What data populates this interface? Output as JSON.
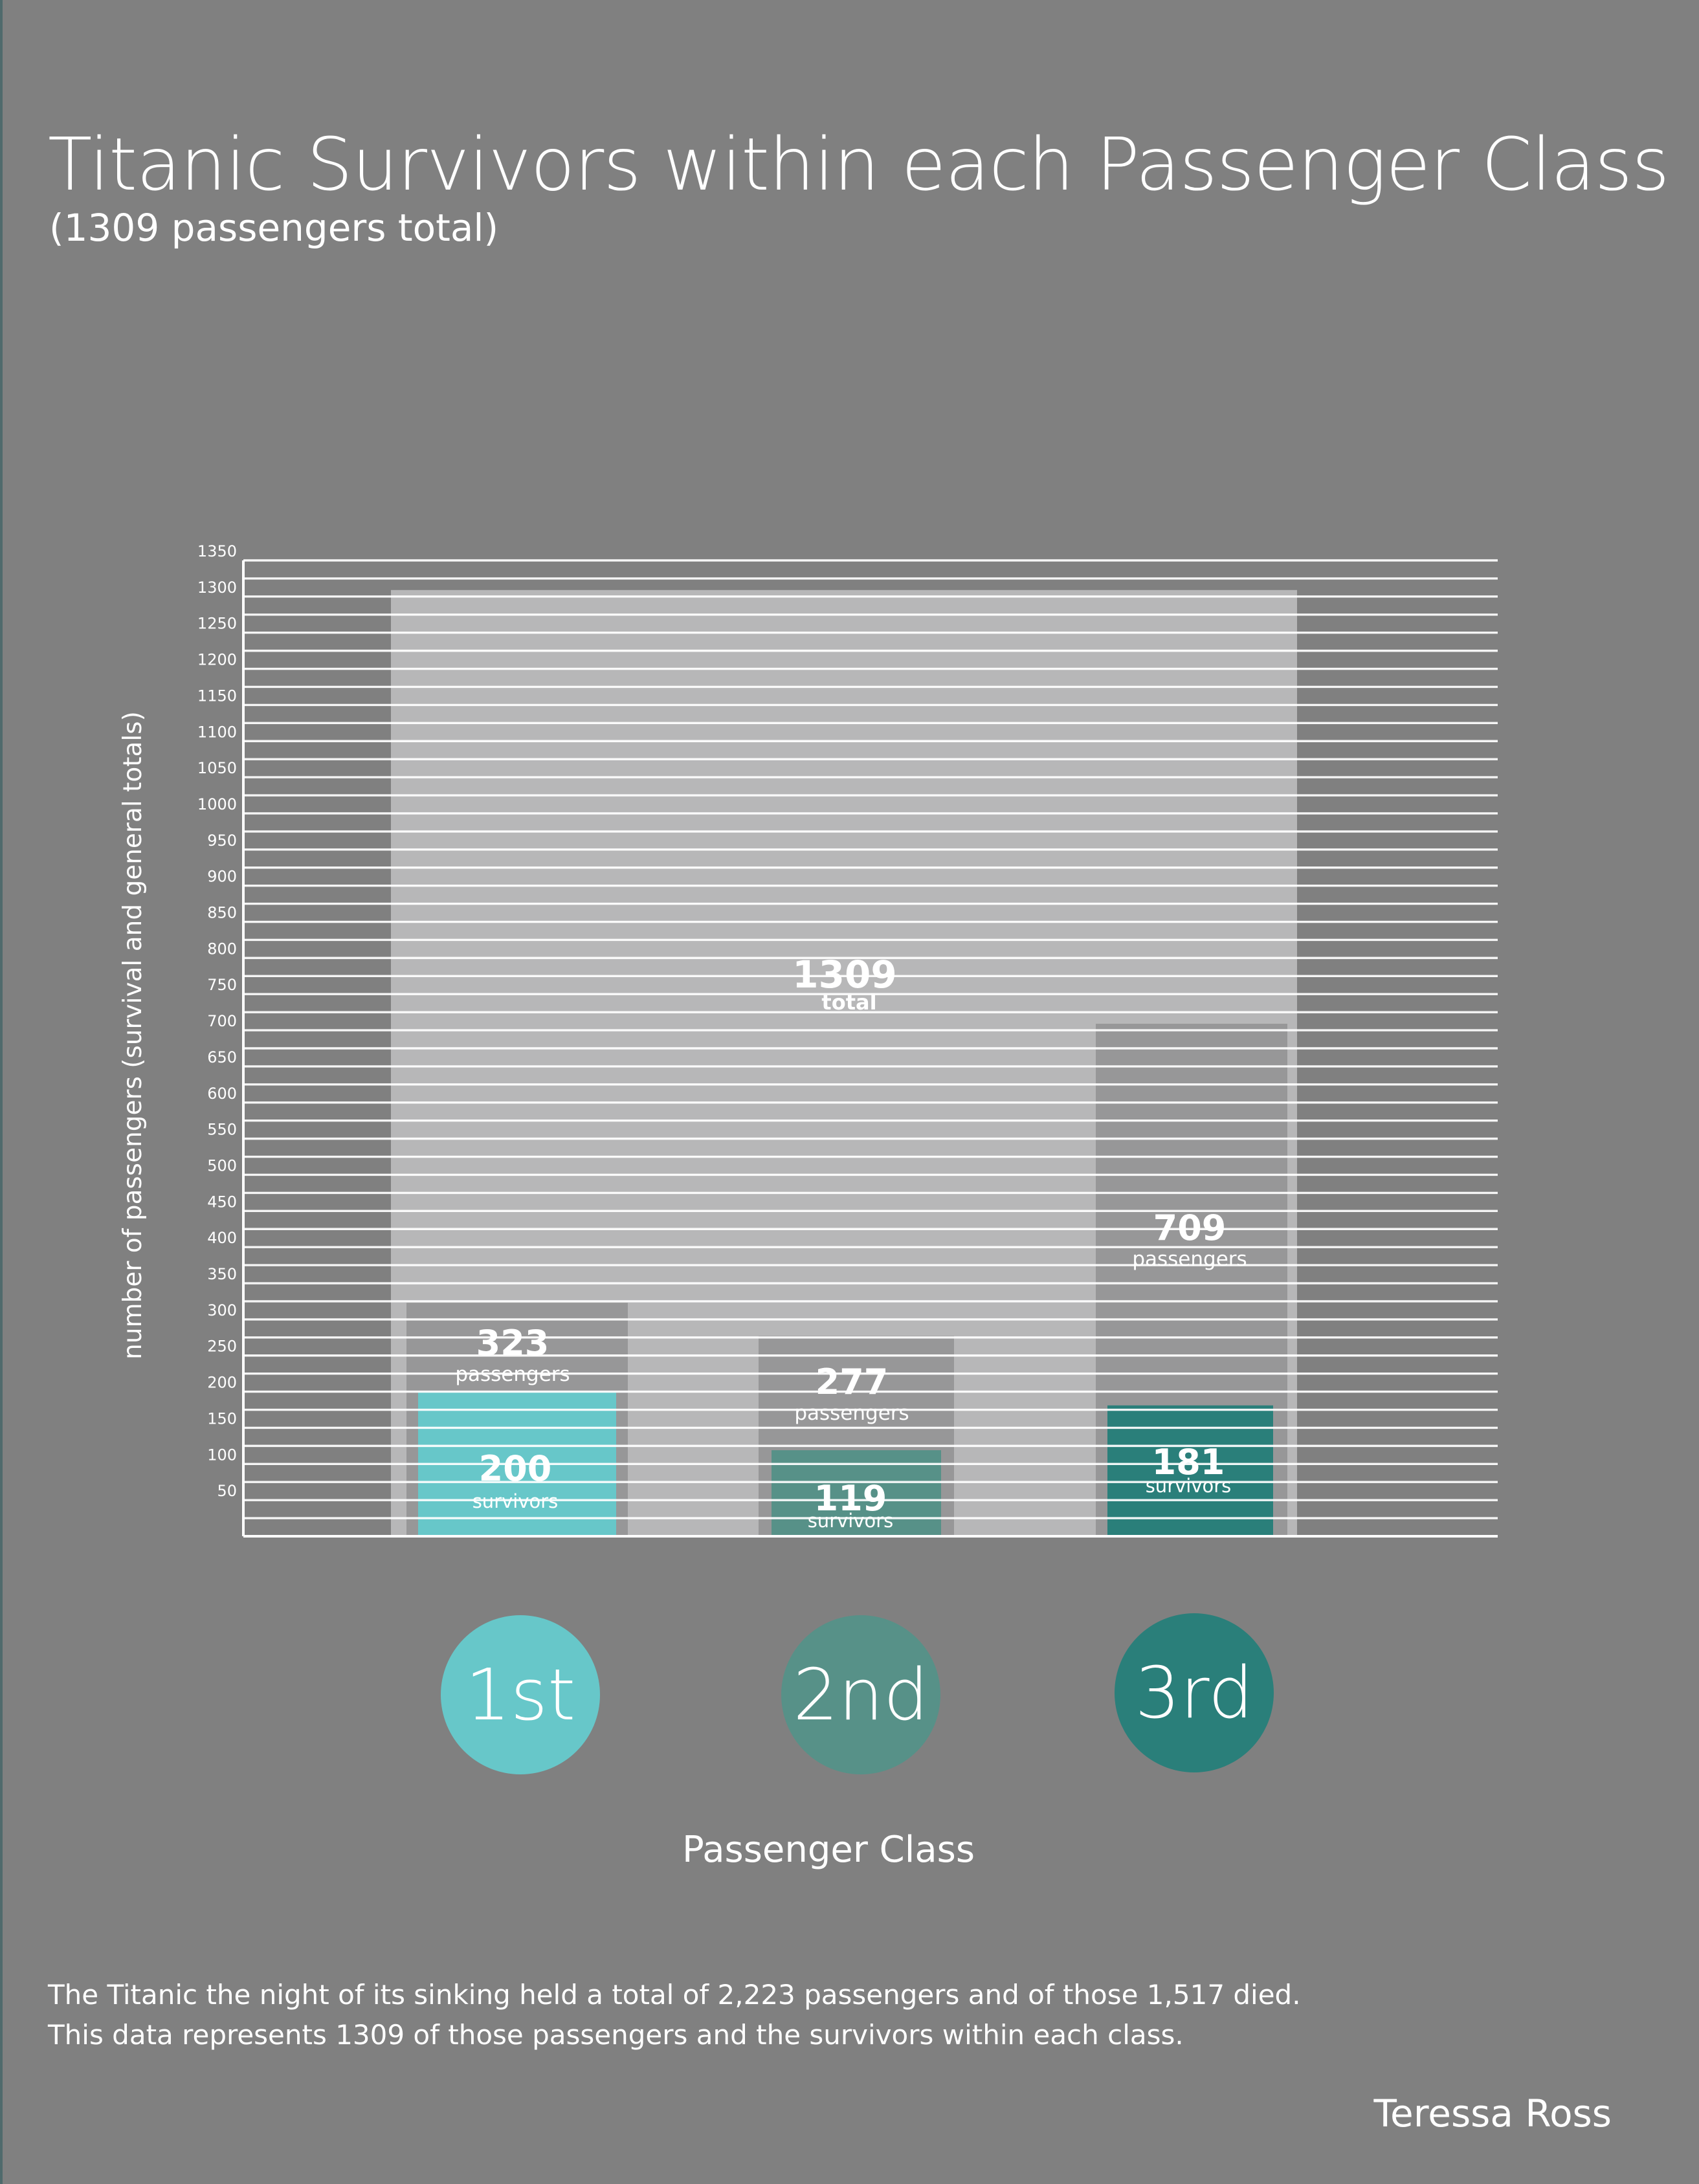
{
  "title": "Titanic Survivors within each Passenger Class",
  "subtitle": "(1309 passengers total)",
  "footnote": {
    "line1": "The Titanic the night of its sinking held a total of 2,223 passengers and of those 1,517 died.",
    "line2": "This data represents 1309 of those passengers and the survivors within each class."
  },
  "author": "Teressa Ross",
  "colors": {
    "background": "#808080",
    "grid": "#ffffff",
    "total_bar": "#b7b7b8",
    "class_bar": "#979798",
    "first": "#67c7c9",
    "second": "#579188",
    "third": "#2a7f7a"
  },
  "chart_data": {
    "type": "bar",
    "ylabel": "number of passengers (survival and general totals)",
    "xlabel": "Passenger Class",
    "ylim": [
      0,
      1350
    ],
    "yticks": [
      50,
      100,
      150,
      200,
      250,
      300,
      350,
      400,
      450,
      500,
      550,
      600,
      650,
      700,
      750,
      800,
      850,
      900,
      950,
      1000,
      1050,
      1100,
      1150,
      1200,
      1250,
      1300,
      1350
    ],
    "grid": true,
    "total": {
      "value": 1309,
      "value_label": "1309",
      "label": "total"
    },
    "categories": [
      "1st",
      "2nd",
      "3rd"
    ],
    "passengers": {
      "values": [
        323,
        277,
        709
      ],
      "labels": [
        "323",
        "277",
        "709"
      ],
      "unit": "passengers"
    },
    "survivors": {
      "values": [
        200,
        119,
        181
      ],
      "labels": [
        "200",
        "119",
        "181"
      ],
      "unit": "survivors"
    }
  }
}
